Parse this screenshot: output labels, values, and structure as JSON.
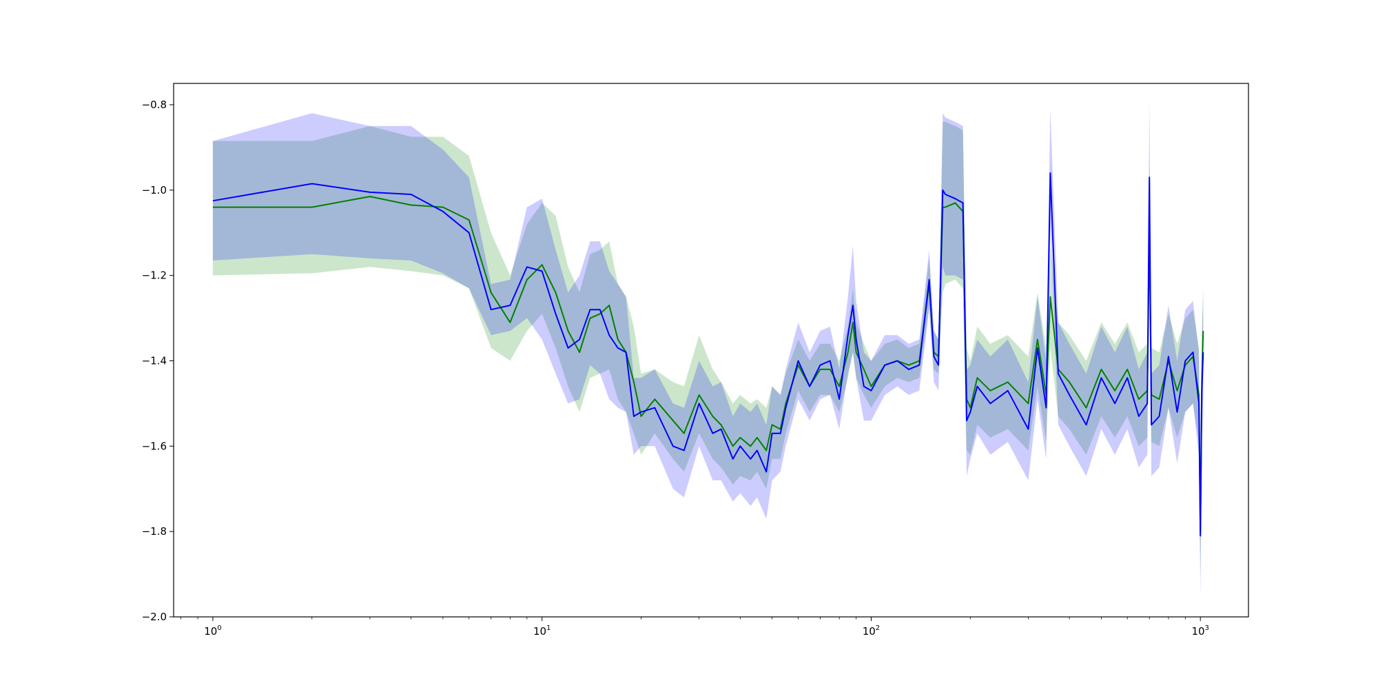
{
  "chart_data": {
    "type": "line",
    "title": "",
    "xlabel": "",
    "ylabel": "",
    "xscale": "log",
    "xlim": [
      0.76,
      1400
    ],
    "ylim": [
      -2.0,
      -0.75
    ],
    "grid": false,
    "legend": "none",
    "x_ticks": [
      {
        "value": 1,
        "base": "10",
        "exp": "0"
      },
      {
        "value": 10,
        "base": "10",
        "exp": "1"
      },
      {
        "value": 100,
        "base": "10",
        "exp": "2"
      },
      {
        "value": 1000,
        "base": "10",
        "exp": "3"
      }
    ],
    "y_ticks": [
      {
        "value": -2.0,
        "label": "−2.0"
      },
      {
        "value": -1.8,
        "label": "−1.8"
      },
      {
        "value": -1.6,
        "label": "−1.6"
      },
      {
        "value": -1.4,
        "label": "−1.4"
      },
      {
        "value": -1.2,
        "label": "−1.2"
      },
      {
        "value": -1.0,
        "label": "−1.0"
      },
      {
        "value": -0.8,
        "label": "−0.8"
      }
    ],
    "series": [
      {
        "color": "#008000",
        "band_color": "#008000",
        "band_opacity": 0.2,
        "x": [
          1,
          2,
          3,
          4,
          5,
          6,
          7,
          8,
          9,
          10,
          11,
          12,
          13,
          14,
          15,
          16,
          17,
          18,
          19,
          20,
          22,
          25,
          27,
          30,
          33,
          35,
          38,
          40,
          43,
          45,
          48,
          50,
          53,
          55,
          60,
          65,
          70,
          75,
          80,
          85,
          88,
          90,
          95,
          100,
          110,
          120,
          130,
          140,
          150,
          155,
          160,
          165,
          168,
          180,
          190,
          195,
          200,
          210,
          230,
          260,
          300,
          320,
          340,
          350,
          370,
          400,
          450,
          500,
          550,
          600,
          650,
          690,
          700,
          710,
          750,
          800,
          850,
          900,
          950,
          990,
          1000,
          1010,
          1020
        ],
        "y": [
          -1.04,
          -1.04,
          -1.015,
          -1.035,
          -1.04,
          -1.07,
          -1.24,
          -1.31,
          -1.21,
          -1.175,
          -1.24,
          -1.33,
          -1.38,
          -1.3,
          -1.29,
          -1.27,
          -1.35,
          -1.38,
          -1.45,
          -1.53,
          -1.49,
          -1.54,
          -1.57,
          -1.48,
          -1.53,
          -1.55,
          -1.6,
          -1.58,
          -1.6,
          -1.58,
          -1.61,
          -1.55,
          -1.56,
          -1.5,
          -1.41,
          -1.46,
          -1.42,
          -1.42,
          -1.46,
          -1.38,
          -1.31,
          -1.38,
          -1.42,
          -1.46,
          -1.41,
          -1.4,
          -1.41,
          -1.4,
          -1.22,
          -1.38,
          -1.39,
          -1.04,
          -1.04,
          -1.03,
          -1.05,
          -1.49,
          -1.51,
          -1.44,
          -1.47,
          -1.45,
          -1.5,
          -1.35,
          -1.48,
          -1.25,
          -1.42,
          -1.45,
          -1.51,
          -1.42,
          -1.47,
          -1.42,
          -1.49,
          -1.47,
          -1.1,
          -1.48,
          -1.49,
          -1.4,
          -1.47,
          -1.41,
          -1.39,
          -1.48,
          -1.8,
          -1.45,
          -1.33
        ],
        "lower": [
          -1.2,
          -1.195,
          -1.18,
          -1.19,
          -1.2,
          -1.23,
          -1.37,
          -1.4,
          -1.33,
          -1.29,
          -1.37,
          -1.46,
          -1.52,
          -1.44,
          -1.43,
          -1.42,
          -1.49,
          -1.52,
          -1.57,
          -1.62,
          -1.57,
          -1.63,
          -1.66,
          -1.57,
          -1.63,
          -1.65,
          -1.69,
          -1.67,
          -1.68,
          -1.66,
          -1.7,
          -1.63,
          -1.63,
          -1.57,
          -1.47,
          -1.52,
          -1.48,
          -1.48,
          -1.52,
          -1.44,
          -1.38,
          -1.44,
          -1.48,
          -1.51,
          -1.46,
          -1.44,
          -1.45,
          -1.44,
          -1.27,
          -1.42,
          -1.43,
          -1.24,
          -1.22,
          -1.21,
          -1.23,
          -1.61,
          -1.62,
          -1.55,
          -1.58,
          -1.56,
          -1.61,
          -1.46,
          -1.59,
          -1.37,
          -1.53,
          -1.56,
          -1.62,
          -1.53,
          -1.58,
          -1.53,
          -1.6,
          -1.58,
          -1.22,
          -1.59,
          -1.6,
          -1.51,
          -1.58,
          -1.52,
          -1.5,
          -1.59,
          -1.9,
          -1.56,
          -1.44
        ],
        "upper": [
          -0.885,
          -0.885,
          -0.85,
          -0.875,
          -0.875,
          -0.92,
          -1.1,
          -1.2,
          -1.08,
          -1.03,
          -1.06,
          -1.18,
          -1.24,
          -1.15,
          -1.14,
          -1.12,
          -1.22,
          -1.25,
          -1.32,
          -1.43,
          -1.42,
          -1.45,
          -1.46,
          -1.34,
          -1.42,
          -1.45,
          -1.5,
          -1.48,
          -1.5,
          -1.49,
          -1.51,
          -1.46,
          -1.48,
          -1.43,
          -1.35,
          -1.4,
          -1.36,
          -1.36,
          -1.4,
          -1.32,
          -1.23,
          -1.31,
          -1.36,
          -1.4,
          -1.36,
          -1.35,
          -1.37,
          -1.36,
          -1.16,
          -1.33,
          -1.35,
          -0.84,
          -0.84,
          -0.85,
          -0.86,
          -1.37,
          -1.4,
          -1.32,
          -1.36,
          -1.34,
          -1.39,
          -1.24,
          -1.37,
          -1.13,
          -1.31,
          -1.34,
          -1.4,
          -1.31,
          -1.36,
          -1.31,
          -1.38,
          -1.36,
          -0.99,
          -1.37,
          -1.38,
          -1.29,
          -1.36,
          -1.3,
          -1.28,
          -1.37,
          -1.7,
          -1.34,
          -1.22
        ]
      },
      {
        "color": "#0000ff",
        "band_color": "#0000ff",
        "band_opacity": 0.2,
        "x": [
          1,
          2,
          3,
          4,
          5,
          6,
          7,
          8,
          9,
          10,
          11,
          12,
          13,
          14,
          15,
          16,
          17,
          18,
          19,
          20,
          22,
          25,
          27,
          30,
          33,
          35,
          38,
          40,
          43,
          45,
          48,
          50,
          53,
          55,
          60,
          65,
          70,
          75,
          80,
          85,
          88,
          90,
          95,
          100,
          110,
          120,
          130,
          140,
          150,
          155,
          160,
          165,
          168,
          180,
          190,
          195,
          200,
          210,
          230,
          260,
          300,
          320,
          340,
          350,
          370,
          400,
          450,
          500,
          550,
          600,
          650,
          690,
          700,
          710,
          750,
          800,
          850,
          900,
          950,
          990,
          1000,
          1010,
          1020
        ],
        "y": [
          -1.025,
          -0.985,
          -1.005,
          -1.01,
          -1.05,
          -1.1,
          -1.28,
          -1.27,
          -1.18,
          -1.19,
          -1.29,
          -1.37,
          -1.35,
          -1.28,
          -1.28,
          -1.34,
          -1.37,
          -1.38,
          -1.53,
          -1.52,
          -1.51,
          -1.6,
          -1.61,
          -1.5,
          -1.57,
          -1.56,
          -1.63,
          -1.6,
          -1.63,
          -1.61,
          -1.66,
          -1.57,
          -1.57,
          -1.51,
          -1.4,
          -1.46,
          -1.41,
          -1.4,
          -1.49,
          -1.34,
          -1.27,
          -1.35,
          -1.46,
          -1.47,
          -1.41,
          -1.4,
          -1.42,
          -1.41,
          -1.21,
          -1.39,
          -1.41,
          -1.0,
          -1.01,
          -1.02,
          -1.03,
          -1.54,
          -1.52,
          -1.46,
          -1.5,
          -1.47,
          -1.56,
          -1.37,
          -1.51,
          -0.96,
          -1.43,
          -1.48,
          -1.55,
          -1.44,
          -1.5,
          -1.44,
          -1.53,
          -1.5,
          -0.97,
          -1.55,
          -1.53,
          -1.39,
          -1.52,
          -1.4,
          -1.38,
          -1.5,
          -1.81,
          -1.47,
          -1.38
        ],
        "lower": [
          -1.165,
          -1.15,
          -1.16,
          -1.165,
          -1.195,
          -1.23,
          -1.34,
          -1.33,
          -1.3,
          -1.35,
          -1.43,
          -1.5,
          -1.49,
          -1.41,
          -1.43,
          -1.49,
          -1.51,
          -1.52,
          -1.62,
          -1.6,
          -1.6,
          -1.7,
          -1.72,
          -1.6,
          -1.68,
          -1.68,
          -1.73,
          -1.71,
          -1.74,
          -1.72,
          -1.77,
          -1.68,
          -1.66,
          -1.6,
          -1.49,
          -1.54,
          -1.49,
          -1.48,
          -1.56,
          -1.43,
          -1.38,
          -1.44,
          -1.54,
          -1.54,
          -1.48,
          -1.46,
          -1.48,
          -1.47,
          -1.28,
          -1.45,
          -1.47,
          -1.18,
          -1.2,
          -1.2,
          -1.21,
          -1.67,
          -1.63,
          -1.57,
          -1.62,
          -1.59,
          -1.68,
          -1.49,
          -1.63,
          -1.08,
          -1.55,
          -1.6,
          -1.67,
          -1.56,
          -1.62,
          -1.56,
          -1.65,
          -1.62,
          -1.09,
          -1.67,
          -1.65,
          -1.51,
          -1.64,
          -1.52,
          -1.5,
          -1.62,
          -1.95,
          -1.59,
          -1.5
        ],
        "upper": [
          -0.885,
          -0.82,
          -0.85,
          -0.85,
          -0.905,
          -0.97,
          -1.22,
          -1.21,
          -1.04,
          -1.02,
          -1.14,
          -1.24,
          -1.2,
          -1.12,
          -1.12,
          -1.19,
          -1.22,
          -1.25,
          -1.44,
          -1.44,
          -1.42,
          -1.5,
          -1.51,
          -1.4,
          -1.46,
          -1.45,
          -1.53,
          -1.5,
          -1.52,
          -1.5,
          -1.55,
          -1.46,
          -1.48,
          -1.42,
          -1.31,
          -1.38,
          -1.33,
          -1.32,
          -1.42,
          -1.25,
          -1.13,
          -1.26,
          -1.38,
          -1.4,
          -1.34,
          -1.34,
          -1.36,
          -1.35,
          -1.14,
          -1.33,
          -1.35,
          -0.82,
          -0.83,
          -0.84,
          -0.85,
          -1.42,
          -1.41,
          -1.35,
          -1.39,
          -1.35,
          -1.45,
          -1.25,
          -1.4,
          -0.81,
          -1.31,
          -1.36,
          -1.43,
          -1.32,
          -1.38,
          -1.32,
          -1.42,
          -1.38,
          -0.79,
          -1.43,
          -1.41,
          -1.27,
          -1.4,
          -1.28,
          -1.26,
          -1.38,
          -1.68,
          -1.35,
          -1.24
        ]
      }
    ]
  }
}
